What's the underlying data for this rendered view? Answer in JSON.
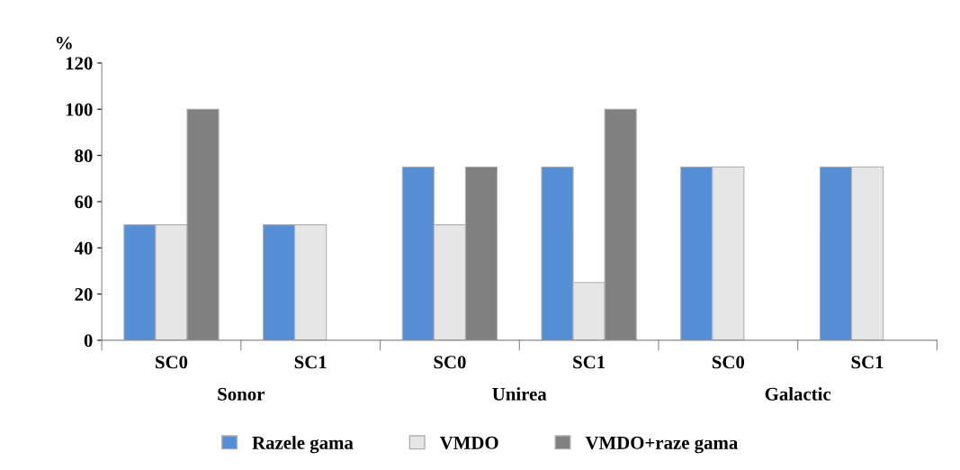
{
  "chart_data": {
    "type": "bar",
    "ylabel": "%",
    "categories": [
      "SC0",
      "SC1",
      "SC0",
      "SC1",
      "SC0",
      "SC1"
    ],
    "series": [
      {
        "name": "Razele gama",
        "color": "#558ed5",
        "values": [
          50,
          50,
          75,
          75,
          75,
          75
        ]
      },
      {
        "name": "VMDO",
        "color": "#e6e6e6",
        "values": [
          50,
          50,
          50,
          25,
          75,
          75
        ]
      },
      {
        "name": "VMDO+raze gama",
        "color": "#808080",
        "values": [
          100,
          null,
          75,
          100,
          null,
          null
        ]
      }
    ],
    "annotations": [
      "Sonor",
      "Unirea",
      "Galactic"
    ],
    "ylim": [
      0,
      120
    ],
    "yticks": [
      0,
      20,
      40,
      60,
      80,
      100,
      120
    ],
    "grid": false,
    "legend": "bottom"
  }
}
